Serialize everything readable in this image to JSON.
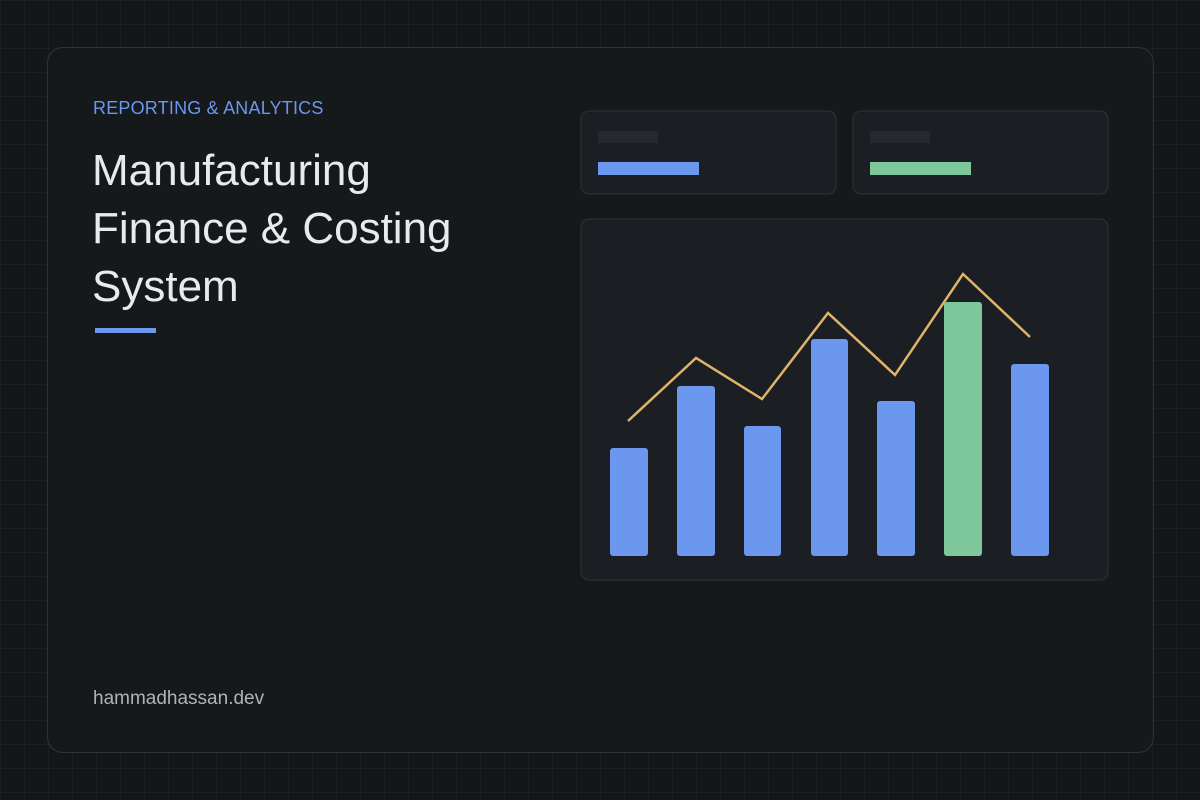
{
  "header": {
    "eyebrow": "REPORTING & ANALYTICS",
    "title": "Manufacturing Finance & Costing System"
  },
  "footer": {
    "site": "hammadhassan.dev"
  }
}
